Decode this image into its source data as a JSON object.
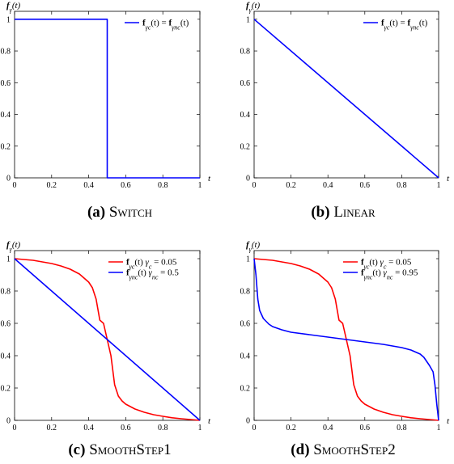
{
  "chart_data": [
    {
      "type": "line",
      "caption": {
        "letter": "(a)",
        "name": "Switch"
      },
      "ylabel": "f_γ(t)",
      "xlabel": "t",
      "xlim": [
        0,
        1
      ],
      "ylim": [
        0,
        1.05
      ],
      "xticks": [
        0,
        0.2,
        0.4,
        0.6,
        0.8,
        1
      ],
      "yticks": [
        0,
        0.2,
        0.4,
        0.6,
        0.8,
        1
      ],
      "legend_position": "top-right",
      "series": [
        {
          "name": "f_γc(t) = f_γnc(t)",
          "color": "#0000ff",
          "x": [
            0,
            0.5,
            0.5,
            1
          ],
          "y": [
            1,
            1,
            0,
            0
          ]
        }
      ]
    },
    {
      "type": "line",
      "caption": {
        "letter": "(b)",
        "name": "Linear"
      },
      "ylabel": "f_γ(t)",
      "xlabel": "t",
      "xlim": [
        0,
        1
      ],
      "ylim": [
        0,
        1.05
      ],
      "xticks": [
        0,
        0.2,
        0.4,
        0.6,
        0.8,
        1
      ],
      "yticks": [
        0,
        0.2,
        0.4,
        0.6,
        0.8,
        1
      ],
      "legend_position": "top-right",
      "series": [
        {
          "name": "f_γc(t) = f_γnc(t)",
          "color": "#0000ff",
          "x": [
            0,
            1
          ],
          "y": [
            1,
            0
          ]
        }
      ]
    },
    {
      "type": "line",
      "caption": {
        "letter": "(c)",
        "name": "SmoothStep1"
      },
      "ylabel": "f_γ(t)",
      "xlabel": "t",
      "xlim": [
        0,
        1
      ],
      "ylim": [
        0,
        1.05
      ],
      "xticks": [
        0,
        0.2,
        0.4,
        0.6,
        0.8,
        1
      ],
      "yticks": [
        0,
        0.2,
        0.4,
        0.6,
        0.8,
        1
      ],
      "legend_position": "top-right",
      "series": [
        {
          "name": "f_γc(t) γc = 0.05",
          "color": "#ff0000",
          "x": [
            0,
            0.05,
            0.1,
            0.15,
            0.2,
            0.25,
            0.3,
            0.35,
            0.4,
            0.42,
            0.44,
            0.46,
            0.48,
            0.5,
            0.52,
            0.54,
            0.56,
            0.58,
            0.6,
            0.65,
            0.7,
            0.75,
            0.8,
            0.85,
            0.9,
            0.95,
            1
          ],
          "y": [
            1,
            0.995,
            0.99,
            0.98,
            0.97,
            0.955,
            0.935,
            0.905,
            0.855,
            0.82,
            0.75,
            0.62,
            0.6,
            0.5,
            0.4,
            0.22,
            0.15,
            0.12,
            0.1,
            0.07,
            0.05,
            0.035,
            0.025,
            0.016,
            0.01,
            0.005,
            0
          ]
        },
        {
          "name": "f_γnc(t) γnc = 0.5",
          "color": "#0000ff",
          "x": [
            0,
            1
          ],
          "y": [
            1,
            0
          ]
        }
      ]
    },
    {
      "type": "line",
      "caption": {
        "letter": "(d)",
        "name": "SmoothStep2"
      },
      "ylabel": "f_γ(t)",
      "xlabel": "t",
      "xlim": [
        0,
        1
      ],
      "ylim": [
        0,
        1.05
      ],
      "xticks": [
        0,
        0.2,
        0.4,
        0.6,
        0.8,
        1
      ],
      "yticks": [
        0,
        0.2,
        0.4,
        0.6,
        0.8,
        1
      ],
      "legend_position": "top-right",
      "series": [
        {
          "name": "f_γc(t) γc = 0.05",
          "color": "#ff0000",
          "x": [
            0,
            0.05,
            0.1,
            0.15,
            0.2,
            0.25,
            0.3,
            0.35,
            0.4,
            0.42,
            0.44,
            0.46,
            0.48,
            0.5,
            0.52,
            0.54,
            0.56,
            0.58,
            0.6,
            0.65,
            0.7,
            0.75,
            0.8,
            0.85,
            0.9,
            0.95,
            1
          ],
          "y": [
            1,
            0.995,
            0.99,
            0.98,
            0.97,
            0.955,
            0.935,
            0.905,
            0.855,
            0.82,
            0.75,
            0.62,
            0.6,
            0.5,
            0.4,
            0.22,
            0.15,
            0.12,
            0.1,
            0.07,
            0.05,
            0.035,
            0.025,
            0.016,
            0.01,
            0.005,
            0
          ]
        },
        {
          "name": "f_γnc(t) γnc = 0.95",
          "color": "#0000ff",
          "x": [
            0,
            0.01,
            0.02,
            0.03,
            0.05,
            0.08,
            0.1,
            0.15,
            0.2,
            0.3,
            0.4,
            0.5,
            0.6,
            0.7,
            0.8,
            0.85,
            0.9,
            0.92,
            0.95,
            0.97,
            0.98,
            0.99,
            1
          ],
          "y": [
            1,
            0.9,
            0.75,
            0.68,
            0.63,
            0.595,
            0.58,
            0.56,
            0.545,
            0.53,
            0.515,
            0.5,
            0.485,
            0.47,
            0.45,
            0.435,
            0.41,
            0.39,
            0.34,
            0.3,
            0.22,
            0.1,
            0
          ]
        }
      ]
    }
  ]
}
